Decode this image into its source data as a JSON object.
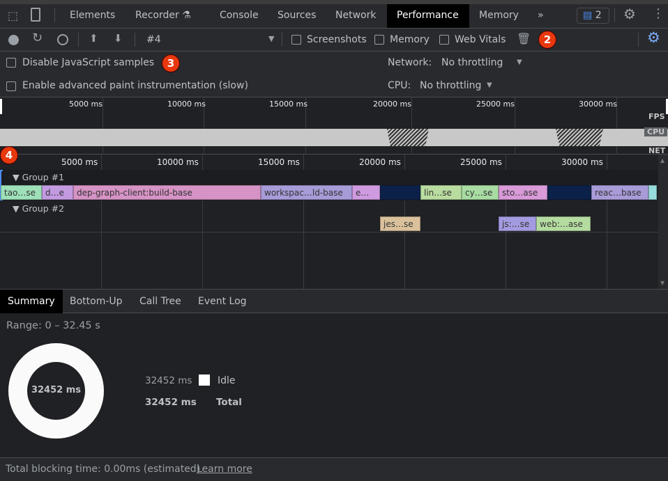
{
  "tabs": {
    "items": [
      "Elements",
      "Recorder",
      "Console",
      "Sources",
      "Network",
      "Performance",
      "Memory"
    ],
    "active": "Performance",
    "more": "»",
    "issues_count": "2"
  },
  "toolbar": {
    "recording": "#4",
    "screenshots": "Screenshots",
    "memory": "Memory",
    "web_vitals": "Web Vitals"
  },
  "settings": {
    "disable_js": "Disable JavaScript samples",
    "advanced_paint": "Enable advanced paint instrumentation (slow)",
    "network_label": "Network:",
    "network_value": "No throttling",
    "cpu_label": "CPU:",
    "cpu_value": "No throttling"
  },
  "overview": {
    "ticks": [
      "5000 ms",
      "10000 ms",
      "15000 ms",
      "20000 ms",
      "25000 ms",
      "30000 ms"
    ],
    "lanes": [
      "FPS",
      "CPU",
      "NET"
    ]
  },
  "flame": {
    "ticks": [
      "5000 ms",
      "10000 ms",
      "15000 ms",
      "20000 ms",
      "25000 ms",
      "30000 ms"
    ],
    "group1": "Group #1",
    "group2": "Group #2",
    "group1_bars": [
      {
        "label": "tao…se",
        "color": "#9ee0b8"
      },
      {
        "label": "d…e",
        "color": "#c39ae0"
      },
      {
        "label": "dep-graph-client:build-base",
        "color": "#d693c5"
      },
      {
        "label": "workspac…ld-base",
        "color": "#a79bd8"
      },
      {
        "label": "e…",
        "color": "#cf9be0"
      },
      {
        "label": "",
        "color": "#0c2149"
      },
      {
        "label": "lin…se",
        "color": "#b9dca0"
      },
      {
        "label": "cy…se",
        "color": "#a8dca2"
      },
      {
        "label": "sto…ase",
        "color": "#d99ad8"
      },
      {
        "label": "",
        "color": "#0c2149"
      },
      {
        "label": "reac…base",
        "color": "#a99bd8"
      },
      {
        "label": "",
        "color": "#97dcdc"
      }
    ],
    "group2_bars": [
      {
        "label": "jes…se",
        "color": "#dac19c"
      },
      {
        "label": "js:…se",
        "color": "#a39be0"
      },
      {
        "label": "web:…ase",
        "color": "#b5dca0"
      }
    ]
  },
  "bottom_tabs": {
    "items": [
      "Summary",
      "Bottom-Up",
      "Call Tree",
      "Event Log"
    ],
    "active": "Summary"
  },
  "summary": {
    "range": "Range: 0 – 32.45 s",
    "donut_center": "32452 ms",
    "idle_value": "32452 ms",
    "idle_label": "Idle",
    "total_value": "32452 ms",
    "total_label": "Total",
    "idle_color": "#ffffff"
  },
  "footer": {
    "text": "Total blocking time: 0.00ms (estimated)",
    "link": "Learn more"
  },
  "annotations": [
    "2",
    "3",
    "4"
  ]
}
